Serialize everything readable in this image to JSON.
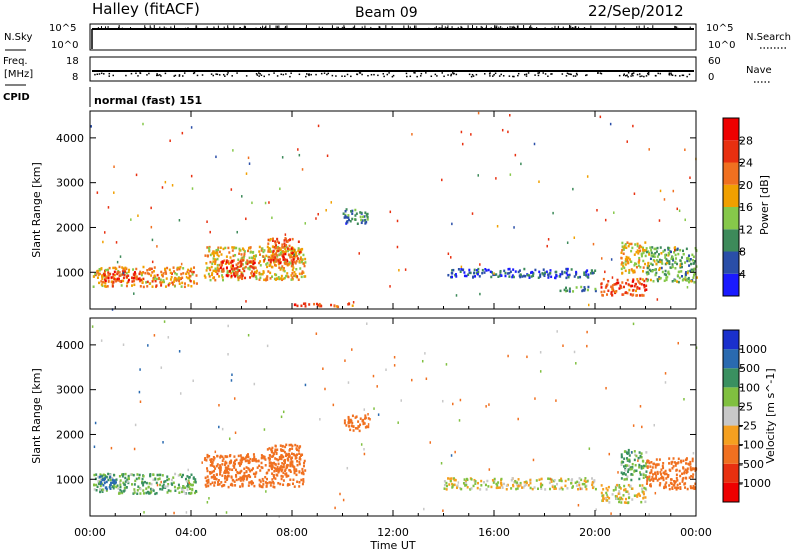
{
  "header": {
    "station": "Halley (fitACF)",
    "beam": "Beam 09",
    "date": "22/Sep/2012"
  },
  "nsky_panel": {
    "left_label": "N.Sky",
    "right_label": "N.Search",
    "left_ticks": [
      "10^5",
      "10^0"
    ],
    "right_ticks": [
      "10^5",
      "10^0"
    ]
  },
  "freq_panel": {
    "left_label_1": "Freq.",
    "left_label_2": "[MHz]",
    "right_label": "Nave",
    "left_ticks": [
      "18",
      "8"
    ],
    "right_ticks": [
      "60",
      "0"
    ]
  },
  "cpid_panel": {
    "label": "CPID",
    "text": "normal (fast) 151"
  },
  "x_axis": {
    "label": "Time UT",
    "ticks": [
      "00:00",
      "04:00",
      "08:00",
      "12:00",
      "16:00",
      "20:00",
      "00:00"
    ]
  },
  "colors": {
    "power": [
      "#1a1aff",
      "#2a4ea8",
      "#3d8a5a",
      "#86c84a",
      "#f0a000",
      "#f07020",
      "#e83010",
      "#ee0000"
    ],
    "velocity": [
      "#ee0000",
      "#e83010",
      "#f07020",
      "#f5a020",
      "#c8c8c8",
      "#80c040",
      "#3a9060",
      "#2a6ab0",
      "#1a30cc"
    ]
  },
  "chart_data": [
    {
      "type": "heatmap",
      "title": "",
      "ylabel": "Slant Range [km]",
      "xlabel": "",
      "ylim": [
        180,
        4600
      ],
      "y_ticks": [
        "4000",
        "3000",
        "2000",
        "1000"
      ],
      "colorbar": {
        "label": "Power [dB]",
        "ticks": [
          "28",
          "24",
          "20",
          "16",
          "12",
          "8",
          "4"
        ],
        "range": [
          0,
          32
        ]
      },
      "blobs": [
        {
          "t0": 0.1,
          "t1": 4.2,
          "r0": 700,
          "r1": 1150,
          "value": 20
        },
        {
          "t0": 0.5,
          "t1": 2.0,
          "r0": 800,
          "r1": 1050,
          "value": 26
        },
        {
          "t0": 4.5,
          "t1": 8.5,
          "r0": 850,
          "r1": 1600,
          "value": 18
        },
        {
          "t0": 5.0,
          "t1": 6.5,
          "r0": 900,
          "r1": 1300,
          "value": 26
        },
        {
          "t0": 7.0,
          "t1": 8.3,
          "r0": 1200,
          "r1": 1800,
          "value": 24
        },
        {
          "t0": 8.0,
          "t1": 10.5,
          "r0": 250,
          "r1": 330,
          "value": 24
        },
        {
          "t0": 10.0,
          "t1": 11.0,
          "r0": 2100,
          "r1": 2450,
          "value": 8
        },
        {
          "t0": 14.0,
          "t1": 20.0,
          "r0": 900,
          "r1": 1100,
          "value": 6
        },
        {
          "t0": 18.5,
          "t1": 20.0,
          "r0": 600,
          "r1": 700,
          "value": 10
        },
        {
          "t0": 20.2,
          "t1": 22.0,
          "r0": 500,
          "r1": 900,
          "value": 24
        },
        {
          "t0": 21.0,
          "t1": 22.0,
          "r0": 1000,
          "r1": 1700,
          "value": 18
        },
        {
          "t0": 22.0,
          "t1": 24.0,
          "r0": 800,
          "r1": 1600,
          "value": 12
        }
      ]
    },
    {
      "type": "heatmap",
      "title": "",
      "ylabel": "Slant Range [km]",
      "xlabel": "Time UT",
      "ylim": [
        180,
        4600
      ],
      "y_ticks": [
        "4000",
        "3000",
        "2000",
        "1000"
      ],
      "colorbar": {
        "label": "Velocity [m s^-1]",
        "ticks": [
          "1000",
          "500",
          "100",
          "25",
          "-25",
          "-100",
          "-500",
          "-1000"
        ],
        "range": [
          -1000,
          1000
        ]
      },
      "blobs": [
        {
          "t0": 0.1,
          "t1": 4.2,
          "r0": 700,
          "r1": 1150,
          "value": 100
        },
        {
          "t0": 0.3,
          "t1": 1.0,
          "r0": 800,
          "r1": 1100,
          "value": 700
        },
        {
          "t0": 4.5,
          "t1": 8.5,
          "r0": 850,
          "r1": 1600,
          "value": -300
        },
        {
          "t0": 7.0,
          "t1": 8.3,
          "r0": 1200,
          "r1": 1800,
          "value": -400
        },
        {
          "t0": 10.0,
          "t1": 11.0,
          "r0": 2100,
          "r1": 2450,
          "value": -300
        },
        {
          "t0": 14.0,
          "t1": 20.0,
          "r0": 800,
          "r1": 1050,
          "value": 0
        },
        {
          "t0": 20.2,
          "t1": 22.0,
          "r0": 500,
          "r1": 900,
          "value": 0
        },
        {
          "t0": 21.0,
          "t1": 22.0,
          "r0": 1000,
          "r1": 1700,
          "value": 100
        },
        {
          "t0": 22.0,
          "t1": 24.0,
          "r0": 800,
          "r1": 1500,
          "value": -300
        }
      ]
    }
  ]
}
